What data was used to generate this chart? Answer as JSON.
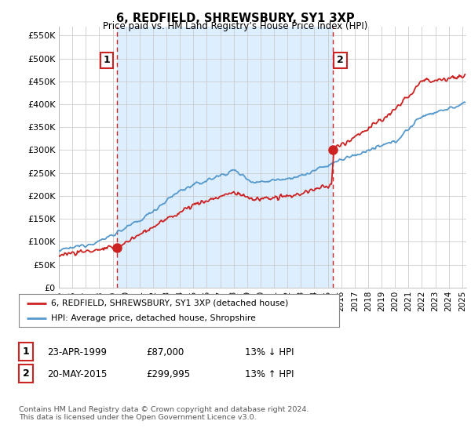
{
  "title": "6, REDFIELD, SHREWSBURY, SY1 3XP",
  "subtitle": "Price paid vs. HM Land Registry’s House Price Index (HPI)",
  "ylabel_ticks": [
    "£0",
    "£50K",
    "£100K",
    "£150K",
    "£200K",
    "£250K",
    "£300K",
    "£350K",
    "£400K",
    "£450K",
    "£500K",
    "£550K"
  ],
  "ylim": [
    0,
    570000
  ],
  "xlim_start": 1995.0,
  "xlim_end": 2025.3,
  "sale1_date": 1999.31,
  "sale1_price": 87000,
  "sale1_label": "1",
  "sale2_date": 2015.38,
  "sale2_price": 299995,
  "sale2_label": "2",
  "red_line_color": "#cc2222",
  "blue_line_color": "#5599cc",
  "fill_color": "#ddeeff",
  "dashed_vline_color": "#cc2222",
  "legend_label1": "6, REDFIELD, SHREWSBURY, SY1 3XP (detached house)",
  "legend_label2": "HPI: Average price, detached house, Shropshire",
  "table_row1": [
    "1",
    "23-APR-1999",
    "£87,000",
    "13% ↓ HPI"
  ],
  "table_row2": [
    "2",
    "20-MAY-2015",
    "£299,995",
    "13% ↑ HPI"
  ],
  "footnote": "Contains HM Land Registry data © Crown copyright and database right 2024.\nThis data is licensed under the Open Government Licence v3.0.",
  "background_color": "#ffffff",
  "plot_bg_color": "#ffffff",
  "grid_color": "#cccccc"
}
